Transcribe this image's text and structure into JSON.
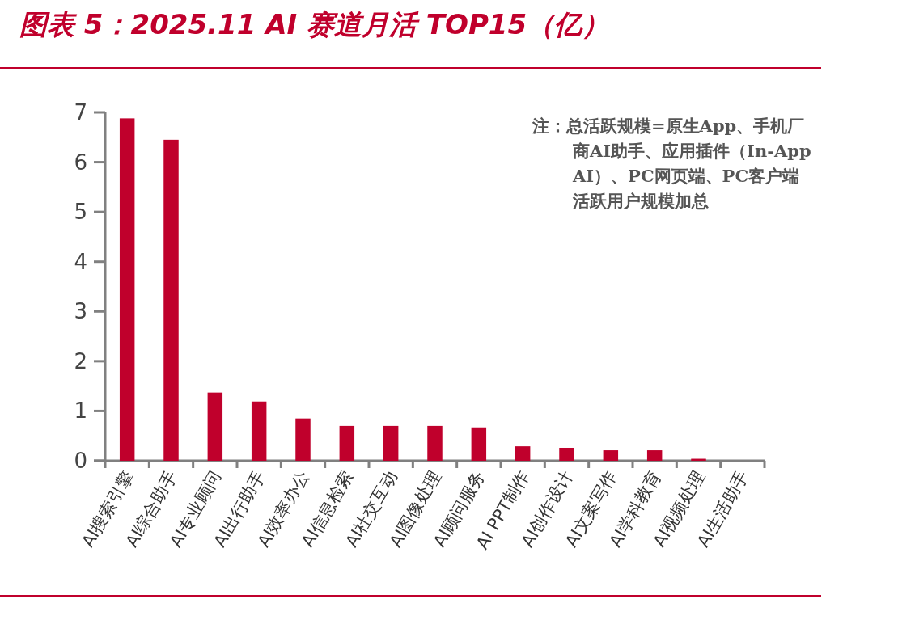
{
  "chart_data": {
    "type": "bar",
    "title": "图表 5：2025.11 AI 赛道月活 TOP15（亿）",
    "categories": [
      "AI搜索引擎",
      "AI综合助手",
      "AI专业顾问",
      "AI出行助手",
      "AI效率办公",
      "AI信息检索",
      "AI社交互动",
      "AI图像处理",
      "AI顾问服务",
      "AI PPT制作",
      "AI创作设计",
      "AI文案写作",
      "AI学科教育",
      "AI视频处理",
      "AI生活助手"
    ],
    "values": [
      6.88,
      6.45,
      1.37,
      1.19,
      0.85,
      0.7,
      0.7,
      0.7,
      0.67,
      0.29,
      0.26,
      0.21,
      0.21,
      0.04,
      0
    ],
    "color": "#c0002c",
    "ylim": [
      0,
      7
    ],
    "yticks": [
      0,
      1,
      2,
      3,
      4,
      5,
      6,
      7
    ],
    "grid": false,
    "annotations": [
      "注：总活跃规模=原生App、手机厂商AI助手、应用插件（In-App AI）、PC网页端、PC客户端活跃用户规模加总"
    ]
  }
}
